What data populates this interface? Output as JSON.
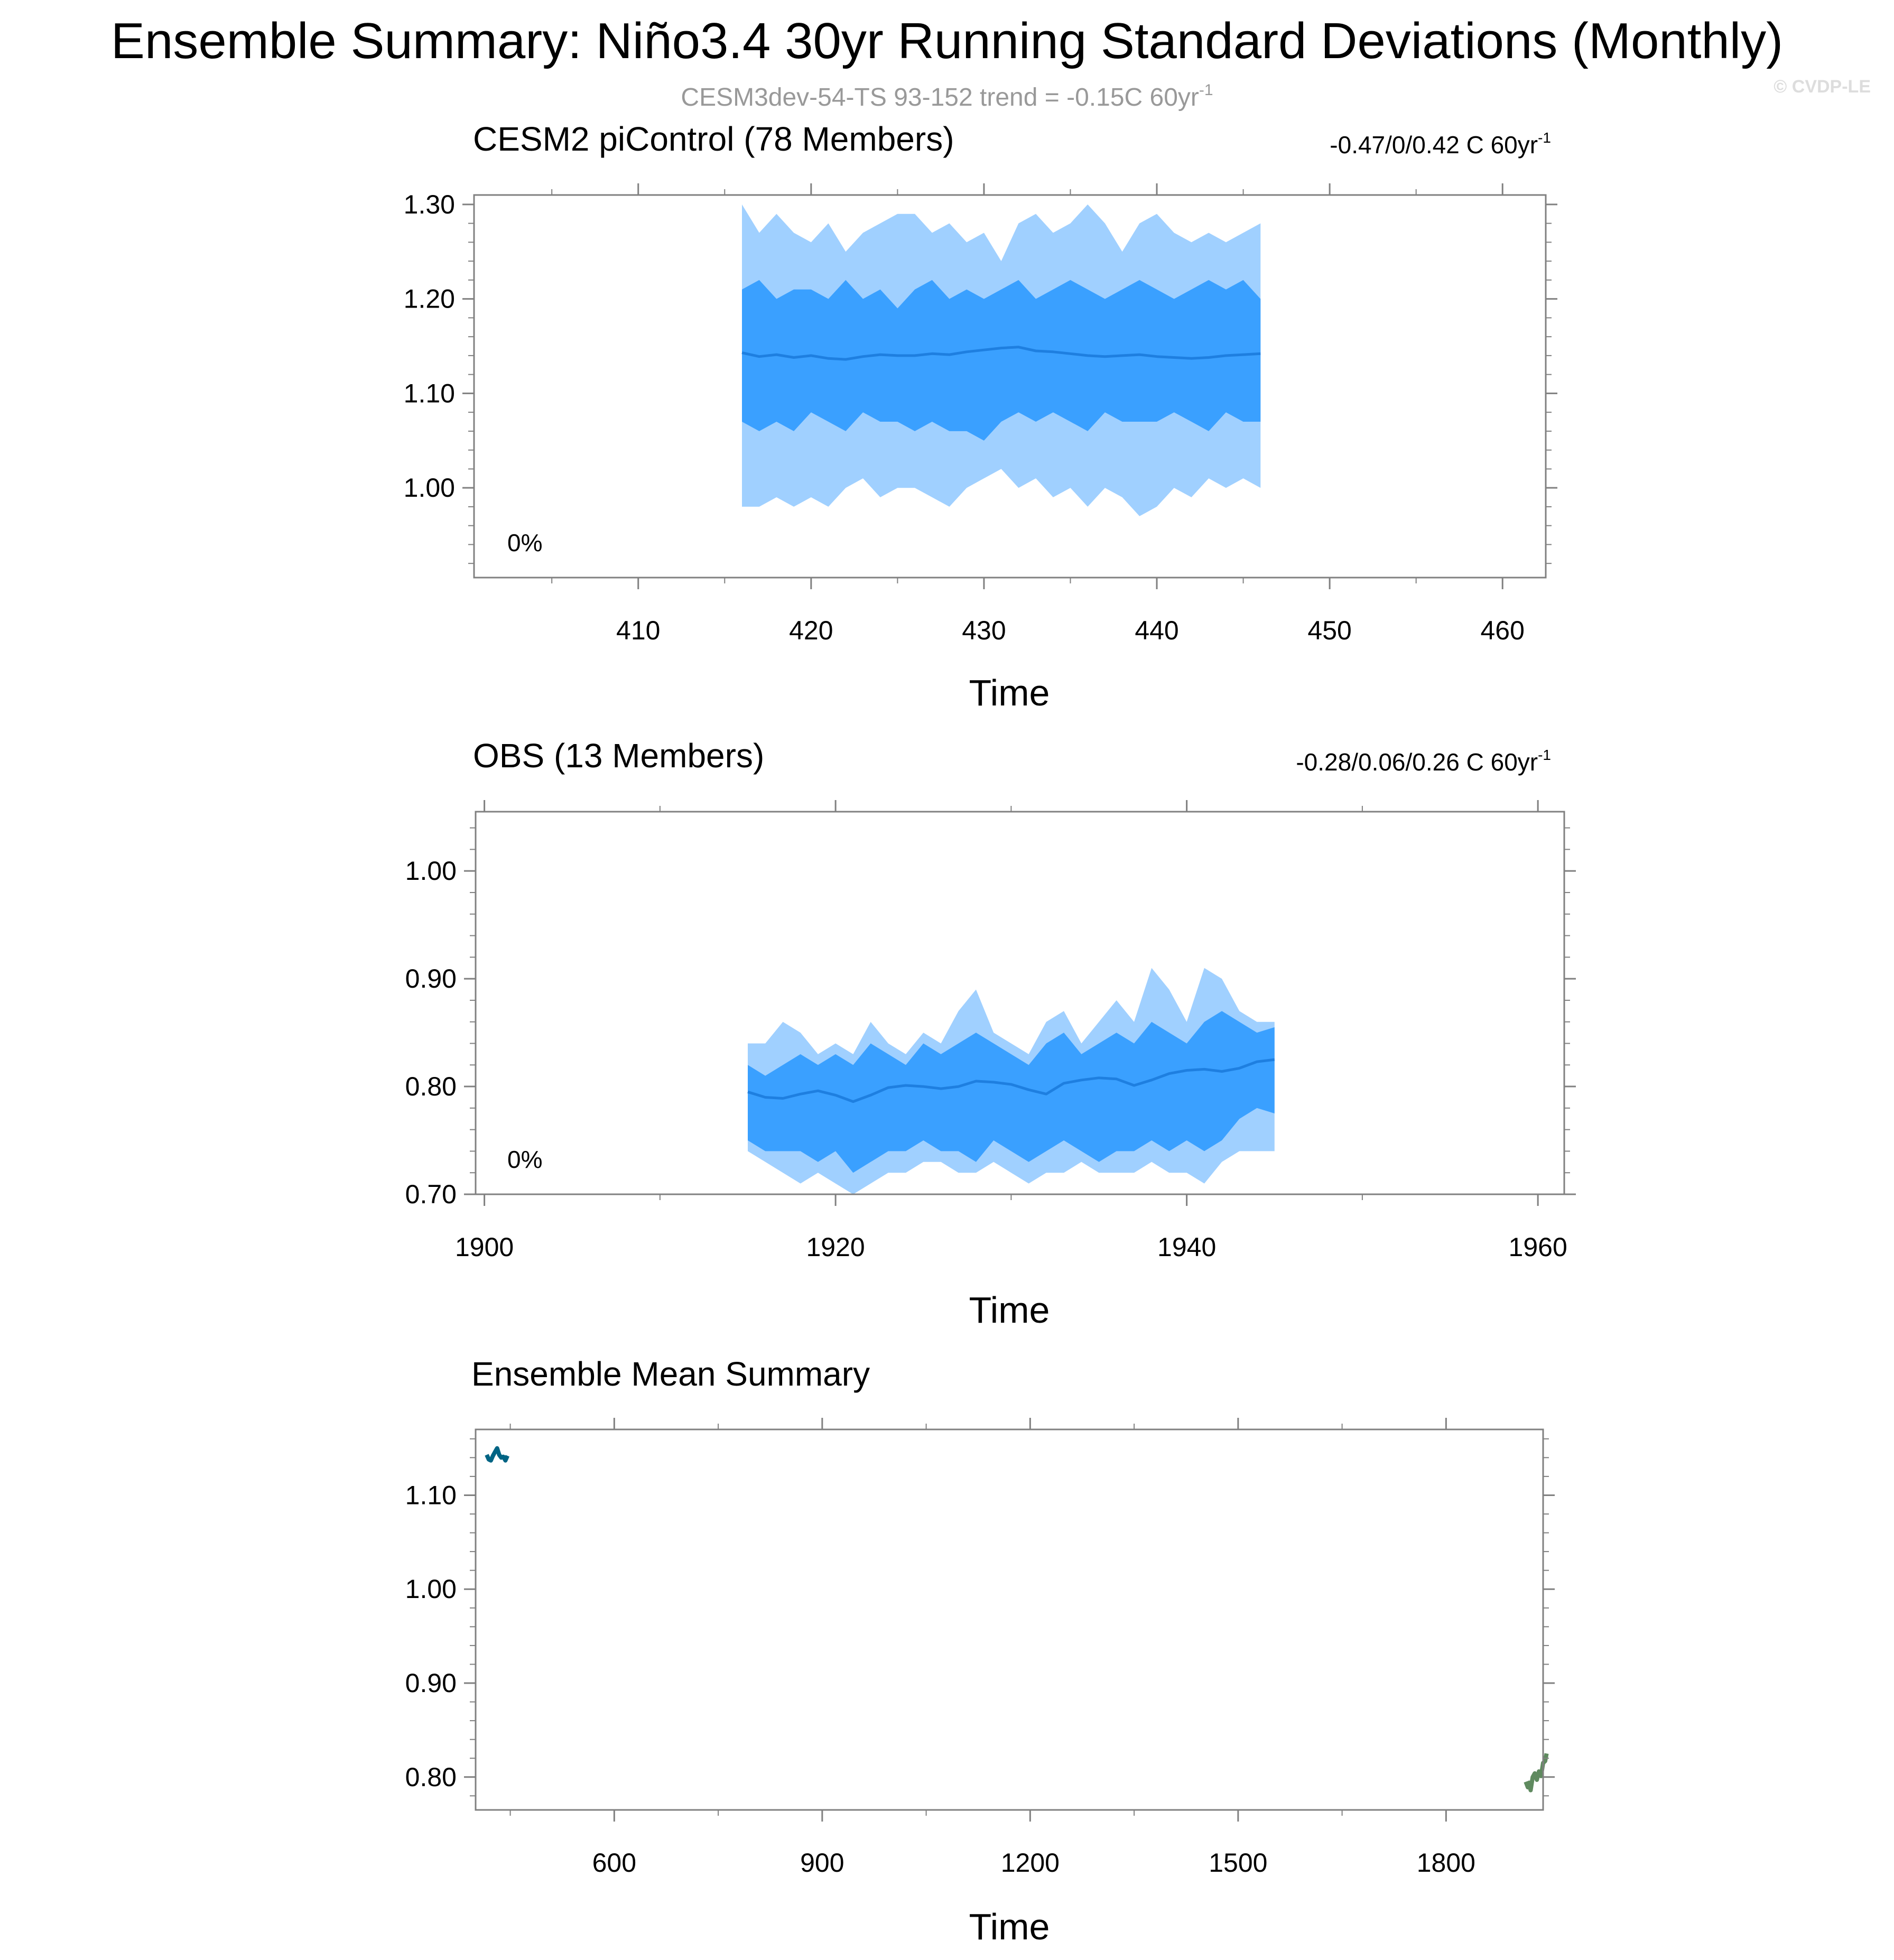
{
  "header": {
    "title": "Ensemble Summary: Niño3.4 30yr Running Standard Deviations (Monthly)",
    "subtitle_base": "CESM3dev-54-TS 93-152 trend = -0.15C 60yr",
    "subtitle_sup": "-1",
    "copyright": "© CVDP-LE"
  },
  "colors": {
    "outer_band": "#a0d0ff",
    "inner_band": "#3aa0ff",
    "mean_line": "#1e7fe0",
    "cesm2_label": "#006484",
    "obs_label": "#5f8a5f",
    "axis": "#808080",
    "text": "#000000"
  },
  "chart_data": [
    {
      "type": "area",
      "title": "CESM2 piControl (78 Members)",
      "trend_base": "-0.47/0/0.42 C 60yr",
      "trend_sup": "-1",
      "percent_label": "0%",
      "xlabel": "Time",
      "xlim": [
        400.5,
        462.5
      ],
      "ylim": [
        0.905,
        1.31
      ],
      "xticks": [
        410,
        420,
        430,
        440,
        450,
        460
      ],
      "xtick_labels": [
        "410",
        "420",
        "430",
        "440",
        "450",
        "460"
      ],
      "yticks": [
        1.0,
        1.1,
        1.2,
        1.3
      ],
      "ytick_labels": [
        "1.00",
        "1.10",
        "1.20",
        "1.30"
      ],
      "x": [
        416,
        417,
        418,
        419,
        420,
        421,
        422,
        423,
        424,
        425,
        426,
        427,
        428,
        429,
        430,
        431,
        432,
        433,
        434,
        435,
        436,
        437,
        438,
        439,
        440,
        441,
        442,
        443,
        444,
        445,
        446
      ],
      "outer_max": [
        1.3,
        1.27,
        1.29,
        1.27,
        1.26,
        1.28,
        1.25,
        1.27,
        1.28,
        1.29,
        1.29,
        1.27,
        1.28,
        1.26,
        1.27,
        1.24,
        1.28,
        1.29,
        1.27,
        1.28,
        1.3,
        1.28,
        1.25,
        1.28,
        1.29,
        1.27,
        1.26,
        1.27,
        1.26,
        1.27,
        1.28
      ],
      "inner_max": [
        1.21,
        1.22,
        1.2,
        1.21,
        1.21,
        1.2,
        1.22,
        1.2,
        1.21,
        1.19,
        1.21,
        1.22,
        1.2,
        1.21,
        1.2,
        1.21,
        1.22,
        1.2,
        1.21,
        1.22,
        1.21,
        1.2,
        1.21,
        1.22,
        1.21,
        1.2,
        1.21,
        1.22,
        1.21,
        1.22,
        1.2
      ],
      "mean": [
        1.143,
        1.139,
        1.141,
        1.138,
        1.14,
        1.137,
        1.136,
        1.139,
        1.141,
        1.14,
        1.14,
        1.142,
        1.141,
        1.144,
        1.146,
        1.148,
        1.149,
        1.145,
        1.144,
        1.142,
        1.14,
        1.139,
        1.14,
        1.141,
        1.139,
        1.138,
        1.137,
        1.138,
        1.14,
        1.141,
        1.142
      ],
      "inner_min": [
        1.07,
        1.06,
        1.07,
        1.06,
        1.08,
        1.07,
        1.06,
        1.08,
        1.07,
        1.07,
        1.06,
        1.07,
        1.06,
        1.06,
        1.05,
        1.07,
        1.08,
        1.07,
        1.08,
        1.07,
        1.06,
        1.08,
        1.07,
        1.07,
        1.07,
        1.08,
        1.07,
        1.06,
        1.08,
        1.07,
        1.07
      ],
      "outer_min": [
        0.98,
        0.98,
        0.99,
        0.98,
        0.99,
        0.98,
        1.0,
        1.01,
        0.99,
        1.0,
        1.0,
        0.99,
        0.98,
        1.0,
        1.01,
        1.02,
        1.0,
        1.01,
        0.99,
        1.0,
        0.98,
        1.0,
        0.99,
        0.97,
        0.98,
        1.0,
        0.99,
        1.01,
        1.0,
        1.01,
        1.0
      ]
    },
    {
      "type": "area",
      "title": "OBS (13 Members)",
      "trend_base": "-0.28/0.06/0.26 C 60yr",
      "trend_sup": "-1",
      "percent_label": "0%",
      "xlabel": "Time",
      "xlim": [
        1899.5,
        1961.5
      ],
      "ylim": [
        0.7,
        1.055
      ],
      "xticks": [
        1900,
        1920,
        1940,
        1960
      ],
      "xtick_labels": [
        "1900",
        "1920",
        "1940",
        "1960"
      ],
      "yticks": [
        0.7,
        0.8,
        0.9,
        1.0
      ],
      "ytick_labels": [
        "0.70",
        "0.80",
        "0.90",
        "1.00"
      ],
      "x": [
        1915,
        1916,
        1917,
        1918,
        1919,
        1920,
        1921,
        1922,
        1923,
        1924,
        1925,
        1926,
        1927,
        1928,
        1929,
        1930,
        1931,
        1932,
        1933,
        1934,
        1935,
        1936,
        1937,
        1938,
        1939,
        1940,
        1941,
        1942,
        1943,
        1944,
        1945
      ],
      "outer_max": [
        0.84,
        0.84,
        0.86,
        0.85,
        0.83,
        0.84,
        0.83,
        0.86,
        0.84,
        0.83,
        0.85,
        0.84,
        0.87,
        0.89,
        0.85,
        0.84,
        0.83,
        0.86,
        0.87,
        0.84,
        0.86,
        0.88,
        0.86,
        0.91,
        0.89,
        0.86,
        0.91,
        0.9,
        0.87,
        0.86,
        0.86
      ],
      "inner_max": [
        0.82,
        0.81,
        0.82,
        0.83,
        0.82,
        0.83,
        0.82,
        0.84,
        0.83,
        0.82,
        0.84,
        0.83,
        0.84,
        0.85,
        0.84,
        0.83,
        0.82,
        0.84,
        0.85,
        0.83,
        0.84,
        0.85,
        0.84,
        0.86,
        0.85,
        0.84,
        0.86,
        0.87,
        0.86,
        0.85,
        0.855
      ],
      "mean": [
        0.795,
        0.79,
        0.789,
        0.793,
        0.796,
        0.792,
        0.786,
        0.792,
        0.799,
        0.801,
        0.8,
        0.798,
        0.8,
        0.805,
        0.804,
        0.802,
        0.797,
        0.793,
        0.803,
        0.806,
        0.808,
        0.807,
        0.801,
        0.806,
        0.812,
        0.815,
        0.816,
        0.814,
        0.817,
        0.823,
        0.825
      ],
      "inner_min": [
        0.75,
        0.74,
        0.74,
        0.74,
        0.73,
        0.74,
        0.72,
        0.73,
        0.74,
        0.74,
        0.75,
        0.74,
        0.74,
        0.73,
        0.75,
        0.74,
        0.73,
        0.74,
        0.75,
        0.74,
        0.73,
        0.74,
        0.74,
        0.75,
        0.74,
        0.75,
        0.74,
        0.75,
        0.77,
        0.78,
        0.775
      ],
      "outer_min": [
        0.74,
        0.73,
        0.72,
        0.71,
        0.72,
        0.71,
        0.7,
        0.71,
        0.72,
        0.72,
        0.73,
        0.73,
        0.72,
        0.72,
        0.73,
        0.72,
        0.71,
        0.72,
        0.72,
        0.73,
        0.72,
        0.72,
        0.72,
        0.73,
        0.72,
        0.72,
        0.71,
        0.73,
        0.74,
        0.74,
        0.74
      ]
    },
    {
      "type": "line",
      "title": "Ensemble Mean Summary",
      "xlabel": "Time",
      "xlim": [
        400,
        1940
      ],
      "ylim": [
        0.765,
        1.17
      ],
      "xticks": [
        600,
        900,
        1200,
        1500,
        1800
      ],
      "xtick_labels": [
        "600",
        "900",
        "1200",
        "1500",
        "1800"
      ],
      "yticks": [
        0.8,
        0.9,
        1.0,
        1.1
      ],
      "ytick_labels": [
        "0.80",
        "0.90",
        "1.00",
        "1.10"
      ],
      "series": [
        {
          "x": [
            416,
            419,
            422,
            425,
            428,
            431,
            434,
            437,
            440,
            443,
            446
          ],
          "y": [
            1.143,
            1.138,
            1.137,
            1.142,
            1.146,
            1.15,
            1.143,
            1.14,
            1.141,
            1.137,
            1.142
          ],
          "color": "#006484"
        },
        {
          "x": [
            1915,
            1918,
            1920,
            1922,
            1925,
            1928,
            1931,
            1934,
            1937,
            1940,
            1943,
            1945
          ],
          "y": [
            0.795,
            0.789,
            0.794,
            0.786,
            0.8,
            0.804,
            0.797,
            0.806,
            0.801,
            0.815,
            0.817,
            0.825
          ],
          "color": "#5f8a5f"
        }
      ]
    }
  ]
}
